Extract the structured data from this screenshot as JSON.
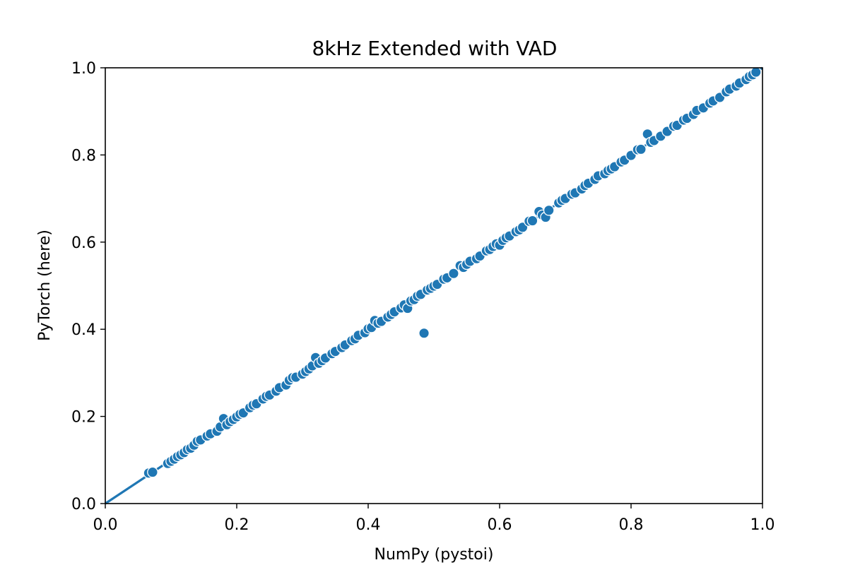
{
  "chart_data": {
    "type": "scatter",
    "title": "8kHz Extended with VAD",
    "xlabel": "NumPy (pystoi)",
    "ylabel": "PyTorch (here)",
    "xlim": [
      0.0,
      1.0
    ],
    "ylim": [
      0.0,
      1.0
    ],
    "xticks": [
      "0.0",
      "0.2",
      "0.4",
      "0.6",
      "0.8",
      "1.0"
    ],
    "yticks": [
      "0.0",
      "0.2",
      "0.4",
      "0.6",
      "0.8",
      "1.0"
    ],
    "grid": false,
    "color": "#1f77b4",
    "reference_line": {
      "x": [
        0.0,
        1.0
      ],
      "y": [
        0.0,
        1.0
      ]
    },
    "series": [
      {
        "points": [
          [
            0.066,
            0.07
          ],
          [
            0.072,
            0.072
          ],
          [
            0.095,
            0.092
          ],
          [
            0.1,
            0.097
          ],
          [
            0.105,
            0.102
          ],
          [
            0.11,
            0.108
          ],
          [
            0.115,
            0.112
          ],
          [
            0.12,
            0.117
          ],
          [
            0.125,
            0.124
          ],
          [
            0.13,
            0.127
          ],
          [
            0.135,
            0.134
          ],
          [
            0.14,
            0.143
          ],
          [
            0.145,
            0.146
          ],
          [
            0.155,
            0.155
          ],
          [
            0.16,
            0.16
          ],
          [
            0.17,
            0.166
          ],
          [
            0.175,
            0.176
          ],
          [
            0.18,
            0.195
          ],
          [
            0.185,
            0.181
          ],
          [
            0.19,
            0.188
          ],
          [
            0.195,
            0.193
          ],
          [
            0.2,
            0.199
          ],
          [
            0.205,
            0.205
          ],
          [
            0.21,
            0.208
          ],
          [
            0.22,
            0.22
          ],
          [
            0.225,
            0.226
          ],
          [
            0.23,
            0.229
          ],
          [
            0.24,
            0.24
          ],
          [
            0.245,
            0.246
          ],
          [
            0.25,
            0.249
          ],
          [
            0.26,
            0.258
          ],
          [
            0.265,
            0.266
          ],
          [
            0.275,
            0.272
          ],
          [
            0.28,
            0.283
          ],
          [
            0.285,
            0.289
          ],
          [
            0.29,
            0.29
          ],
          [
            0.3,
            0.297
          ],
          [
            0.305,
            0.303
          ],
          [
            0.31,
            0.309
          ],
          [
            0.315,
            0.316
          ],
          [
            0.32,
            0.335
          ],
          [
            0.325,
            0.322
          ],
          [
            0.33,
            0.328
          ],
          [
            0.335,
            0.334
          ],
          [
            0.345,
            0.344
          ],
          [
            0.35,
            0.349
          ],
          [
            0.36,
            0.358
          ],
          [
            0.365,
            0.364
          ],
          [
            0.375,
            0.374
          ],
          [
            0.38,
            0.378
          ],
          [
            0.385,
            0.386
          ],
          [
            0.395,
            0.392
          ],
          [
            0.4,
            0.401
          ],
          [
            0.405,
            0.404
          ],
          [
            0.41,
            0.42
          ],
          [
            0.415,
            0.414
          ],
          [
            0.42,
            0.418
          ],
          [
            0.43,
            0.428
          ],
          [
            0.435,
            0.434
          ],
          [
            0.44,
            0.44
          ],
          [
            0.45,
            0.449
          ],
          [
            0.455,
            0.456
          ],
          [
            0.46,
            0.448
          ],
          [
            0.465,
            0.465
          ],
          [
            0.47,
            0.468
          ],
          [
            0.475,
            0.476
          ],
          [
            0.48,
            0.48
          ],
          [
            0.485,
            0.391
          ],
          [
            0.49,
            0.49
          ],
          [
            0.495,
            0.494
          ],
          [
            0.5,
            0.499
          ],
          [
            0.505,
            0.503
          ],
          [
            0.515,
            0.515
          ],
          [
            0.52,
            0.518
          ],
          [
            0.53,
            0.528
          ],
          [
            0.54,
            0.546
          ],
          [
            0.545,
            0.542
          ],
          [
            0.55,
            0.549
          ],
          [
            0.555,
            0.556
          ],
          [
            0.565,
            0.562
          ],
          [
            0.57,
            0.568
          ],
          [
            0.58,
            0.58
          ],
          [
            0.585,
            0.583
          ],
          [
            0.59,
            0.59
          ],
          [
            0.595,
            0.596
          ],
          [
            0.6,
            0.593
          ],
          [
            0.605,
            0.604
          ],
          [
            0.61,
            0.61
          ],
          [
            0.615,
            0.614
          ],
          [
            0.625,
            0.624
          ],
          [
            0.63,
            0.628
          ],
          [
            0.635,
            0.634
          ],
          [
            0.645,
            0.648
          ],
          [
            0.65,
            0.649
          ],
          [
            0.66,
            0.67
          ],
          [
            0.665,
            0.662
          ],
          [
            0.67,
            0.657
          ],
          [
            0.675,
            0.673
          ],
          [
            0.69,
            0.69
          ],
          [
            0.695,
            0.696
          ],
          [
            0.7,
            0.7
          ],
          [
            0.71,
            0.71
          ],
          [
            0.715,
            0.713
          ],
          [
            0.725,
            0.722
          ],
          [
            0.73,
            0.73
          ],
          [
            0.735,
            0.735
          ],
          [
            0.745,
            0.744
          ],
          [
            0.75,
            0.752
          ],
          [
            0.76,
            0.757
          ],
          [
            0.765,
            0.764
          ],
          [
            0.77,
            0.768
          ],
          [
            0.775,
            0.773
          ],
          [
            0.785,
            0.784
          ],
          [
            0.79,
            0.788
          ],
          [
            0.8,
            0.799
          ],
          [
            0.81,
            0.812
          ],
          [
            0.815,
            0.813
          ],
          [
            0.825,
            0.848
          ],
          [
            0.83,
            0.829
          ],
          [
            0.835,
            0.833
          ],
          [
            0.845,
            0.843
          ],
          [
            0.855,
            0.854
          ],
          [
            0.865,
            0.866
          ],
          [
            0.87,
            0.868
          ],
          [
            0.88,
            0.88
          ],
          [
            0.885,
            0.884
          ],
          [
            0.895,
            0.893
          ],
          [
            0.9,
            0.902
          ],
          [
            0.91,
            0.908
          ],
          [
            0.92,
            0.919
          ],
          [
            0.925,
            0.924
          ],
          [
            0.935,
            0.932
          ],
          [
            0.945,
            0.945
          ],
          [
            0.95,
            0.951
          ],
          [
            0.96,
            0.958
          ],
          [
            0.965,
            0.965
          ],
          [
            0.975,
            0.973
          ],
          [
            0.98,
            0.98
          ],
          [
            0.985,
            0.984
          ],
          [
            0.99,
            0.99
          ]
        ]
      }
    ]
  }
}
